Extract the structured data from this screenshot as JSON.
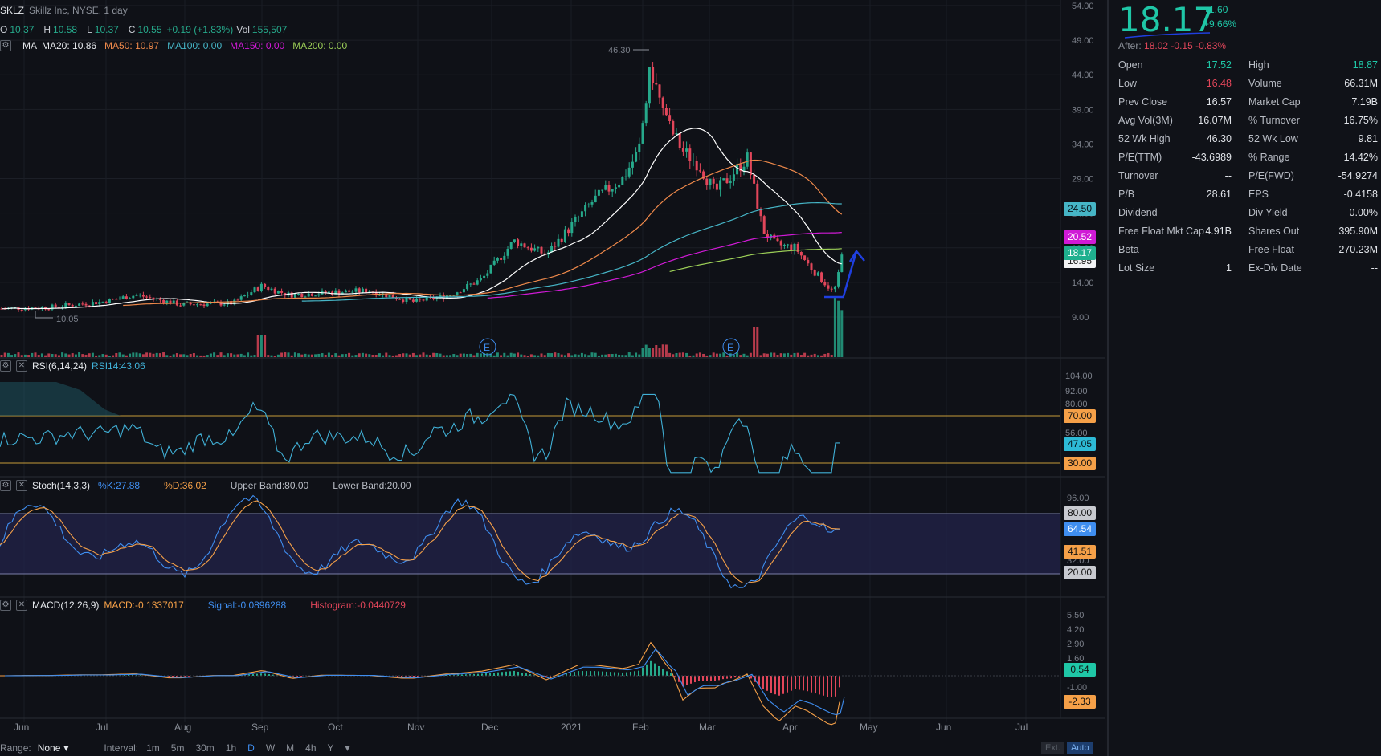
{
  "header": {
    "symbol": "SKLZ",
    "company": "Skillz Inc, NYSE, 1 day",
    "o_label": "O",
    "o": "10.37",
    "h_label": "H",
    "h": "10.58",
    "l_label": "L",
    "l": "10.37",
    "c_label": "C",
    "c": "10.55",
    "change": "+0.19 (+1.83%)",
    "vol_label": "Vol",
    "vol": "155,507"
  },
  "ma_legend": {
    "title": "MA",
    "ma20": "MA20: 10.86",
    "ma50": "MA50: 10.97",
    "ma100": "MA100: 0.00",
    "ma150": "MA150: 0.00",
    "ma200": "MA200: 0.00"
  },
  "rsi_legend": {
    "title": "RSI(6,14,24)",
    "value": "RSI14:43.06"
  },
  "stoch_legend": {
    "title": "Stoch(14,3,3)",
    "k": "%K:27.88",
    "d": "%D:36.02",
    "upper": "Upper Band:80.00",
    "lower": "Lower Band:20.00"
  },
  "macd_legend": {
    "title": "MACD(12,26,9)",
    "macd": "MACD:-0.1337017",
    "signal": "Signal:-0.0896288",
    "hist": "Histogram:-0.0440729"
  },
  "price_axis": [
    "54.00",
    "49.00",
    "44.00",
    "39.00",
    "34.00",
    "29.00",
    "24.00",
    "19.00",
    "14.00",
    "9.00"
  ],
  "rsi_axis": [
    "104.00",
    "92.00",
    "80.00",
    "56.00"
  ],
  "stoch_axis": [
    "96.00",
    "32.00"
  ],
  "macd_axis": [
    "5.50",
    "4.20",
    "2.90",
    "1.60",
    "-1.00",
    "-2.30"
  ],
  "time_axis": [
    "Jun",
    "Jul",
    "Aug",
    "Sep",
    "Oct",
    "Nov",
    "Dec",
    "2021",
    "Feb",
    "Mar",
    "Apr",
    "May",
    "Jun",
    "Jul"
  ],
  "annotations": {
    "high": "46.30",
    "low": "10.05",
    "earnings": "E"
  },
  "tags": {
    "ma100": "24.50",
    "ma150": "20.52",
    "last": "18.17",
    "ma200": "16.95",
    "rsi_upper": "70.00",
    "rsi_value": "47.05",
    "rsi_lower": "30.00",
    "stoch_upper": "80.00",
    "stoch_k": "64.54",
    "stoch_d": "41.51",
    "stoch_lower": "20.00",
    "macd_hist": "0.54",
    "macd_value": "-2.33"
  },
  "colors": {
    "up": "#26a98b",
    "down": "#e2465a",
    "ma20": "#ffffff",
    "ma50": "#f08a4b",
    "ma100": "#46b5c6",
    "ma150": "#d01ad6",
    "ma200": "#9ccf57",
    "rsi": "#40b0d6",
    "stoch_k": "#3f8ef0",
    "stoch_d": "#f5a048",
    "macd": "#f5a048",
    "signal": "#3f8ef0"
  },
  "bottom": {
    "range_label": "Range:",
    "range_value": "None",
    "interval_label": "Interval:",
    "intervals": [
      "1m",
      "5m",
      "30m",
      "1h",
      "D",
      "W",
      "M",
      "4h",
      "Y"
    ],
    "ext": "Ext.",
    "auto": "Auto"
  },
  "quote": {
    "price": "18.17",
    "change": "+1.60",
    "change_pct": "+9.66%",
    "after_label": "After:",
    "after_value": "18.02 -0.15 -0.83%",
    "rows": [
      {
        "l1": "Open",
        "v1": "17.52",
        "l2": "High",
        "v2": "18.87"
      },
      {
        "l1": "Low",
        "v1": "16.48",
        "l2": "Volume",
        "v2": "66.31M"
      },
      {
        "l1": "Prev Close",
        "v1": "16.57",
        "l2": "Market Cap",
        "v2": "7.19B"
      },
      {
        "l1": "Avg Vol(3M)",
        "v1": "16.07M",
        "l2": "% Turnover",
        "v2": "16.75%"
      },
      {
        "l1": "52 Wk High",
        "v1": "46.30",
        "l2": "52 Wk Low",
        "v2": "9.81"
      },
      {
        "l1": "P/E(TTM)",
        "v1": "-43.6989",
        "l2": "% Range",
        "v2": "14.42%"
      },
      {
        "l1": "Turnover",
        "v1": "--",
        "l2": "P/E(FWD)",
        "v2": "-54.9274"
      },
      {
        "l1": "P/B",
        "v1": "28.61",
        "l2": "EPS",
        "v2": "-0.4158"
      },
      {
        "l1": "Dividend",
        "v1": "--",
        "l2": "Div Yield",
        "v2": "0.00%"
      },
      {
        "l1": "Free Float Mkt Cap",
        "v1": "4.91B",
        "l2": "Shares Out",
        "v2": "395.90M"
      },
      {
        "l1": "Beta",
        "v1": "--",
        "l2": "Free Float",
        "v2": "270.23M"
      },
      {
        "l1": "Lot Size",
        "v1": "1",
        "l2": "Ex-Div Date",
        "v2": "--"
      }
    ]
  },
  "chart_data": {
    "type": "line",
    "title": "SKLZ Skillz Inc, NYSE, 1 day",
    "x": [
      "Jun",
      "Jul",
      "Aug",
      "Sep",
      "Oct",
      "Nov",
      "Dec",
      "2021",
      "Feb",
      "Mar",
      "Apr",
      "May"
    ],
    "series": [
      {
        "name": "MA20",
        "values": [
          10.2,
          10.8,
          10.6,
          11.8,
          11.6,
          11.2,
          15.5,
          20.5,
          27.5,
          29.5,
          21.5,
          16.9
        ]
      },
      {
        "name": "MA50",
        "values": [
          10.1,
          10.5,
          10.5,
          11.2,
          11.3,
          11.2,
          12.8,
          15.5,
          21.0,
          26.5,
          27.0,
          24.5
        ]
      }
    ],
    "price_close": [
      10.1,
      10.8,
      10.6,
      12.0,
      11.5,
      11.0,
      15.0,
      21.0,
      37.0,
      27.5,
      20.5,
      18.17
    ],
    "ylim": [
      9,
      54
    ],
    "annotations": {
      "high": 46.3,
      "low": 10.05
    }
  }
}
